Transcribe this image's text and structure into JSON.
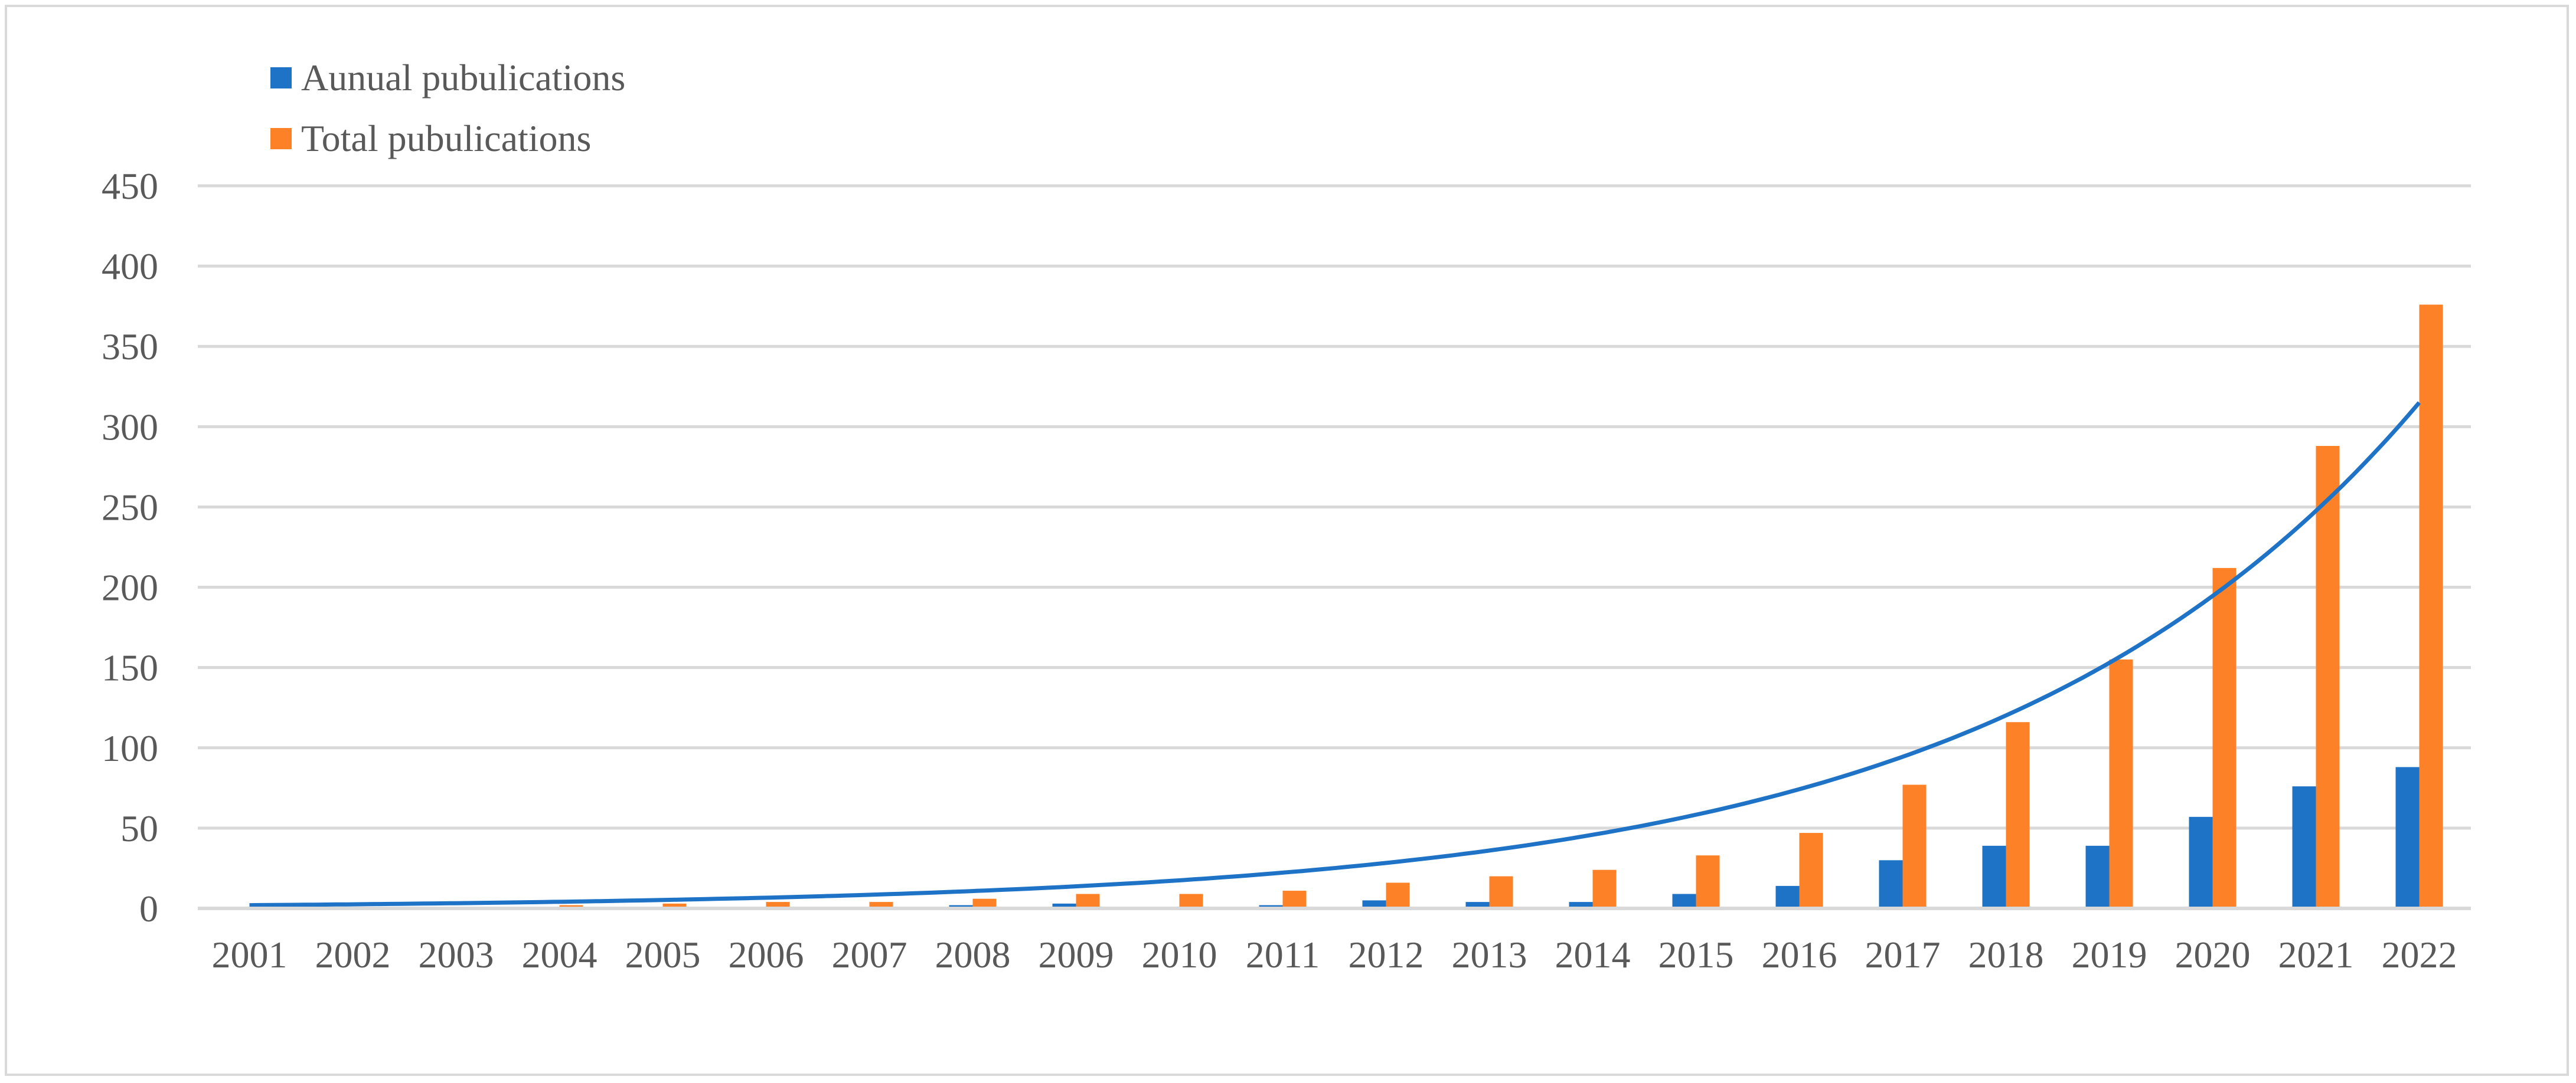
{
  "chart_data": {
    "type": "bar",
    "categories": [
      "2001",
      "2002",
      "2003",
      "2004",
      "2005",
      "2006",
      "2007",
      "2008",
      "2009",
      "2010",
      "2011",
      "2012",
      "2013",
      "2014",
      "2015",
      "2016",
      "2017",
      "2018",
      "2019",
      "2020",
      "2021",
      "2022"
    ],
    "series": [
      {
        "name": "Aunual pubulications",
        "color": "#1f73c7",
        "values": [
          1,
          0,
          0,
          1,
          1,
          1,
          0,
          2,
          3,
          0,
          2,
          5,
          4,
          4,
          9,
          14,
          30,
          39,
          39,
          57,
          76,
          88
        ]
      },
      {
        "name": "Total pubulications",
        "color": "#fd8127",
        "values": [
          1,
          1,
          1,
          2,
          3,
          4,
          4,
          6,
          9,
          9,
          11,
          16,
          20,
          24,
          33,
          47,
          77,
          116,
          155,
          212,
          288,
          376
        ]
      }
    ],
    "trendline": {
      "type": "exponential",
      "color": "#1f73c7",
      "x_start": "2001",
      "x_end": "2022",
      "y_start": 2,
      "y_end": 315
    },
    "yticks": [
      "0",
      "50",
      "100",
      "150",
      "200",
      "250",
      "300",
      "350",
      "400",
      "450"
    ],
    "ylim": [
      0,
      450
    ],
    "grid": true,
    "legend_position": "top-left",
    "title": "",
    "xlabel": "",
    "ylabel": ""
  }
}
